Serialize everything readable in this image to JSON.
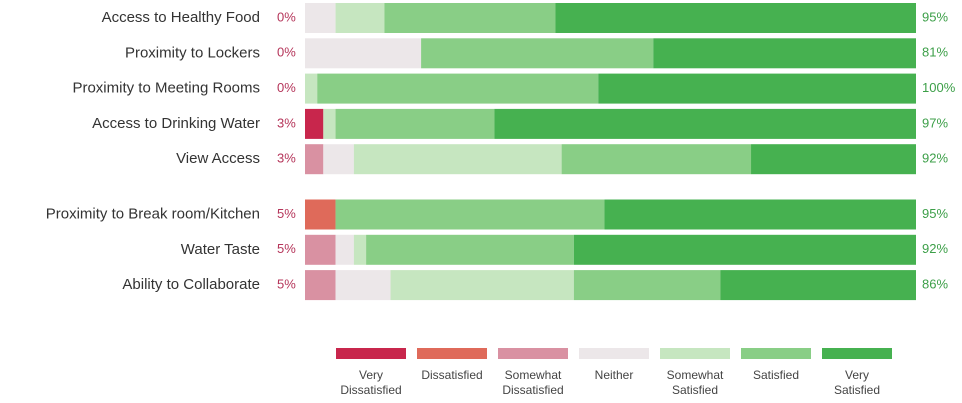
{
  "chart_data": {
    "type": "stacked-bar",
    "categories": [
      "Access to Healthy Food",
      "Proximity to Lockers",
      "Proximity to Meeting Rooms",
      "Access to Drinking Water",
      "View Access",
      "Proximity to Break room/Kitchen",
      "Water Taste",
      "Ability to Collaborate"
    ],
    "xlim": [
      0,
      100
    ],
    "series": [
      {
        "name": "Very Dissatisfied",
        "color": "#c8264c",
        "values": [
          0,
          0,
          0,
          3,
          0,
          0,
          0,
          0
        ]
      },
      {
        "name": "Dissatisfied",
        "color": "#df6a5a",
        "values": [
          0,
          0,
          0,
          0,
          0,
          5,
          0,
          0
        ]
      },
      {
        "name": "Somewhat Dissatisfied",
        "color": "#d991a2",
        "values": [
          0,
          0,
          0,
          0,
          3,
          0,
          5,
          5
        ]
      },
      {
        "name": "Neither",
        "color": "#ece7e9",
        "values": [
          5,
          19,
          0,
          0,
          5,
          0,
          3,
          9
        ]
      },
      {
        "name": "Somewhat Satisfied",
        "color": "#c6e6c0",
        "values": [
          8,
          0,
          2,
          2,
          34,
          0,
          2,
          30
        ]
      },
      {
        "name": "Satisfied",
        "color": "#89ce86",
        "values": [
          28,
          38,
          46,
          26,
          31,
          44,
          34,
          24
        ]
      },
      {
        "name": "Very Satisfied",
        "color": "#46b150",
        "values": [
          59,
          43,
          52,
          69,
          27,
          51,
          56,
          32
        ]
      }
    ],
    "dissatisfied_totals": [
      0,
      0,
      0,
      3,
      3,
      5,
      5,
      5
    ],
    "dissatisfied_labels": [
      "0%",
      "0%",
      "0%",
      "3%",
      "3%",
      "5%",
      "5%",
      "5%"
    ],
    "satisfied_totals": [
      95,
      81,
      100,
      97,
      92,
      95,
      92,
      86
    ],
    "satisfied_labels": [
      "95%",
      "81%",
      "100%",
      "97%",
      "92%",
      "95%",
      "92%",
      "86%"
    ]
  }
}
